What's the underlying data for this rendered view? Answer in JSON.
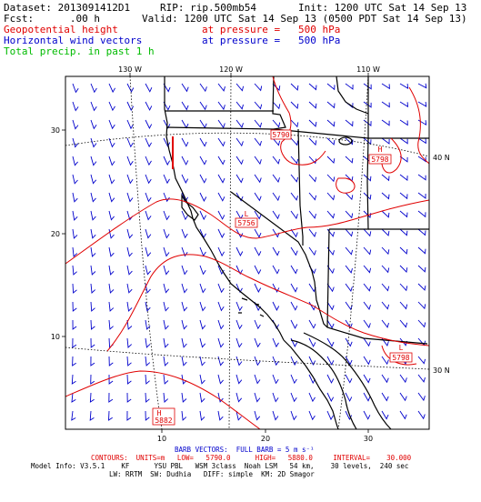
{
  "header": {
    "dataset": "Dataset: 2013091412D1",
    "rip": "RIP: rip.500mb54",
    "init": "Init: 1200 UTC Sat 14 Sep 13",
    "fcst": "Fcst:      .00 h",
    "valid": "Valid: 1200 UTC Sat 14 Sep 13 (0500 PDT Sat 14 Sep 13)",
    "legend_geo": "Geopotential height",
    "legend_geo_level": "at pressure =   500 hPa",
    "legend_wind": "Horizontal wind vectors",
    "legend_wind_level": "at pressure =   500 hPa",
    "legend_precip": "Total precip. in past 1 h"
  },
  "colors": {
    "geopotential": "#e00000",
    "wind": "#0000cc",
    "precip": "#00bb00"
  },
  "map": {
    "lon_top": [
      "130 W",
      "120 W",
      "110 W"
    ],
    "lat_left": [
      "30",
      "20",
      "10"
    ],
    "lat_right": [
      "40 N",
      "30 N"
    ],
    "bottom": [
      "10",
      "20",
      "30"
    ],
    "labels": [
      {
        "kind": "",
        "value": "5790"
      },
      {
        "kind": "H",
        "value": "5798"
      },
      {
        "kind": "L",
        "value": "5756"
      },
      {
        "kind": "L",
        "value": "5798"
      },
      {
        "kind": "H",
        "value": "5882"
      }
    ]
  },
  "footer": {
    "barb": "BARB VECTORS:  FULL BARB = 5 m s⁻¹",
    "contours": "CONTOURS:  UNITS=m   LOW=   5790.0      HIGH=   5880.0     INTERVAL=    30.000",
    "model1": "Model Info: V3.5.1    KF      YSU PBL   WSM 3class  Noah LSM   54 km,    30 levels,  240 sec",
    "model2": "LW: RRTM  SW: Dudhia   DIFF: simple  KM: 2D Smagor"
  }
}
